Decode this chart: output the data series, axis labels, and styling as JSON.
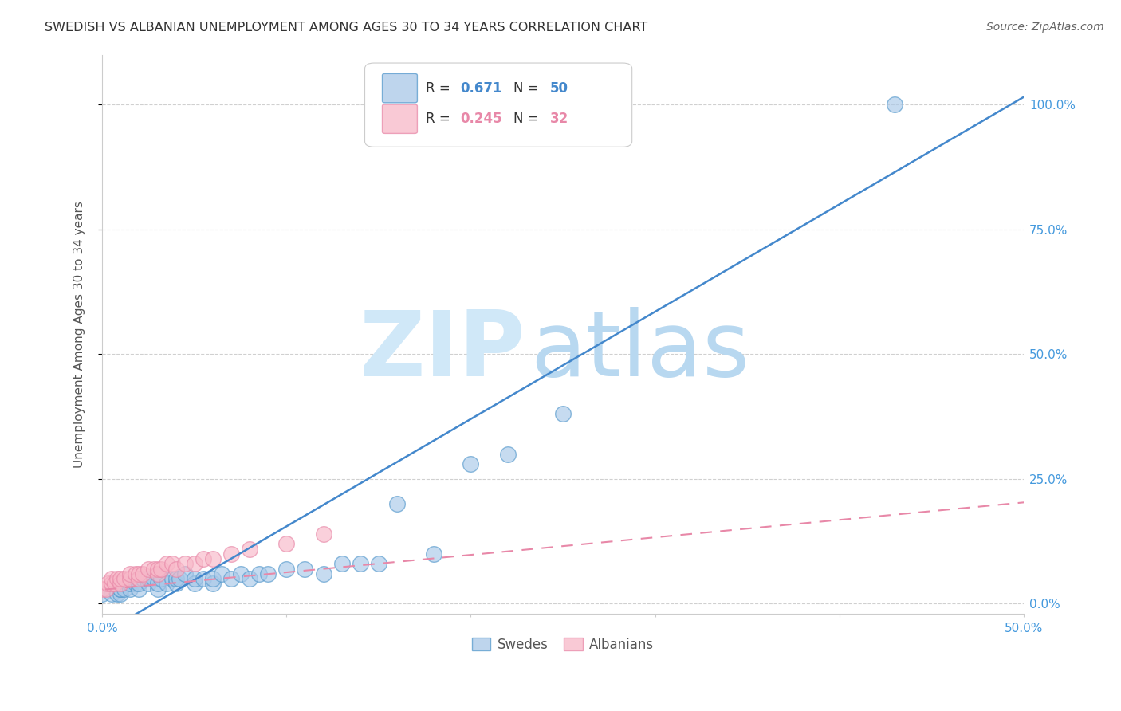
{
  "title": "SWEDISH VS ALBANIAN UNEMPLOYMENT AMONG AGES 30 TO 34 YEARS CORRELATION CHART",
  "source": "Source: ZipAtlas.com",
  "ylabel": "Unemployment Among Ages 30 to 34 years",
  "xlim": [
    0.0,
    0.5
  ],
  "ylim": [
    -0.02,
    1.1
  ],
  "xticks": [
    0.0,
    0.1,
    0.2,
    0.3,
    0.4,
    0.5
  ],
  "xticklabels": [
    "0.0%",
    "",
    "",
    "",
    "",
    "50.0%"
  ],
  "yticks": [
    0.0,
    0.25,
    0.5,
    0.75,
    1.0
  ],
  "yticklabels": [
    "0.0%",
    "25.0%",
    "50.0%",
    "75.0%",
    "100.0%"
  ],
  "legend_r1_val": "0.671",
  "legend_n1_val": "50",
  "legend_r2_val": "0.245",
  "legend_n2_val": "32",
  "blue_color": "#a8c8e8",
  "blue_edge_color": "#5599cc",
  "blue_line_color": "#4488cc",
  "pink_color": "#f8b8c8",
  "pink_edge_color": "#e888a8",
  "pink_line_color": "#e888a8",
  "swedes_x": [
    0.0,
    0.005,
    0.008,
    0.01,
    0.01,
    0.01,
    0.012,
    0.015,
    0.015,
    0.018,
    0.02,
    0.02,
    0.02,
    0.022,
    0.025,
    0.025,
    0.028,
    0.03,
    0.03,
    0.03,
    0.032,
    0.035,
    0.038,
    0.04,
    0.04,
    0.042,
    0.045,
    0.05,
    0.05,
    0.055,
    0.06,
    0.06,
    0.065,
    0.07,
    0.075,
    0.08,
    0.085,
    0.09,
    0.1,
    0.11,
    0.12,
    0.13,
    0.14,
    0.15,
    0.16,
    0.18,
    0.2,
    0.22,
    0.25,
    0.43
  ],
  "swedes_y": [
    0.02,
    0.02,
    0.02,
    0.02,
    0.03,
    0.03,
    0.03,
    0.03,
    0.04,
    0.04,
    0.03,
    0.04,
    0.05,
    0.05,
    0.04,
    0.05,
    0.05,
    0.03,
    0.04,
    0.06,
    0.05,
    0.04,
    0.05,
    0.04,
    0.05,
    0.05,
    0.06,
    0.04,
    0.05,
    0.05,
    0.04,
    0.05,
    0.06,
    0.05,
    0.06,
    0.05,
    0.06,
    0.06,
    0.07,
    0.07,
    0.06,
    0.08,
    0.08,
    0.08,
    0.2,
    0.1,
    0.28,
    0.3,
    0.38,
    1.0
  ],
  "albanians_x": [
    0.0,
    0.002,
    0.003,
    0.005,
    0.005,
    0.007,
    0.008,
    0.01,
    0.01,
    0.012,
    0.015,
    0.015,
    0.018,
    0.02,
    0.02,
    0.022,
    0.025,
    0.028,
    0.03,
    0.03,
    0.032,
    0.035,
    0.038,
    0.04,
    0.045,
    0.05,
    0.055,
    0.06,
    0.07,
    0.08,
    0.1,
    0.12
  ],
  "albanians_y": [
    0.03,
    0.03,
    0.04,
    0.04,
    0.05,
    0.04,
    0.05,
    0.04,
    0.05,
    0.05,
    0.05,
    0.06,
    0.06,
    0.05,
    0.06,
    0.06,
    0.07,
    0.07,
    0.06,
    0.07,
    0.07,
    0.08,
    0.08,
    0.07,
    0.08,
    0.08,
    0.09,
    0.09,
    0.1,
    0.11,
    0.12,
    0.14
  ],
  "swedes_reg_slope": 2.15,
  "swedes_reg_intercept": -0.06,
  "albanians_reg_slope": 0.35,
  "albanians_reg_intercept": 0.028,
  "background_color": "#ffffff",
  "grid_color": "#d0d0d0",
  "title_color": "#333333",
  "tick_label_color": "#4499dd",
  "source_color": "#666666",
  "ylabel_color": "#555555",
  "watermark_zip_color": "#d0e8f8",
  "watermark_atlas_color": "#b8d8f0"
}
